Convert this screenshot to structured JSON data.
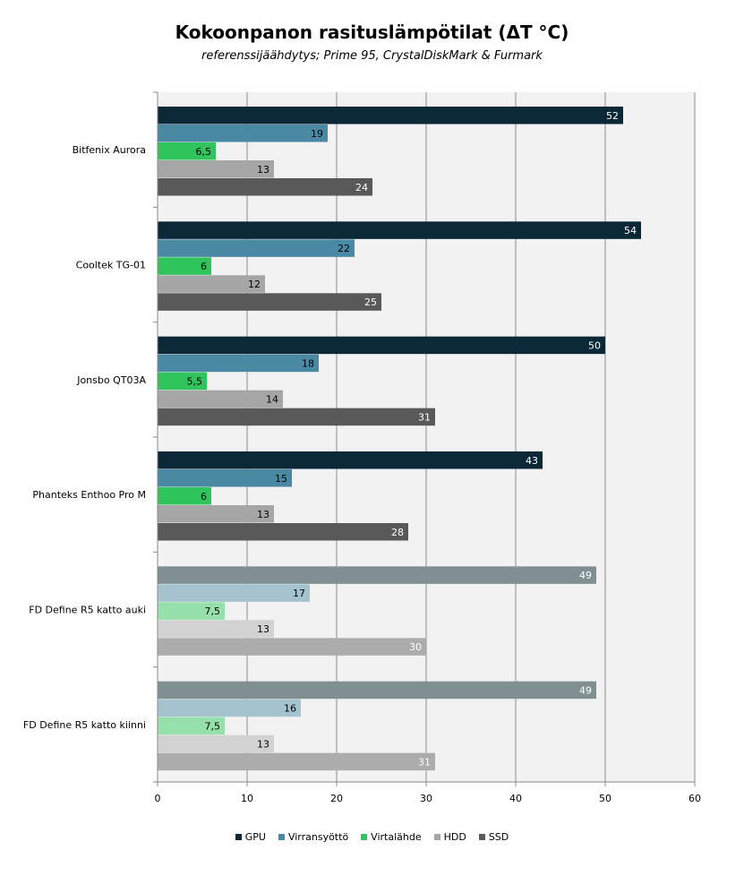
{
  "chart_data": {
    "type": "bar",
    "orientation": "horizontal",
    "title": "Kokoonpanon rasituslämpötilat (ΔT °C)",
    "subtitle": "referenssijäähdytys; Prime 95, CrystalDiskMark & Furmark",
    "categories": [
      "Bitfenix Aurora",
      "Cooltek TG-01",
      "Jonsbo QT03A",
      "Phanteks Enthoo Pro M",
      "FD Define R5 katto auki",
      "FD Define R5 katto kiinni"
    ],
    "series": [
      {
        "name": "GPU",
        "color": "#0a2836",
        "muted_color": "#7f8f92",
        "values": [
          52,
          54,
          50,
          43,
          49,
          49
        ]
      },
      {
        "name": "Virransyöttö",
        "color": "#4a89a3",
        "muted_color": "#a4c3cf",
        "values": [
          19,
          22,
          18,
          15,
          17,
          16
        ]
      },
      {
        "name": "Virtalähde",
        "color": "#2fc45c",
        "muted_color": "#96e0ab",
        "values": [
          6.5,
          6,
          5.5,
          6,
          7.5,
          7.5
        ]
      },
      {
        "name": "HDD",
        "color": "#a6a6a6",
        "muted_color": "#d2d2d2",
        "values": [
          13,
          12,
          14,
          13,
          13,
          13
        ]
      },
      {
        "name": "SSD",
        "color": "#595959",
        "muted_color": "#acacac",
        "values": [
          24,
          25,
          31,
          28,
          30,
          31
        ]
      }
    ],
    "value_labels": [
      [
        "52",
        "54",
        "50",
        "43",
        "49",
        "49"
      ],
      [
        "19",
        "22",
        "18",
        "15",
        "17",
        "16"
      ],
      [
        "6,5",
        "6",
        "5,5",
        "6",
        "7,5",
        "7,5"
      ],
      [
        "13",
        "12",
        "14",
        "13",
        "13",
        "13"
      ],
      [
        "24",
        "25",
        "31",
        "28",
        "30",
        "31"
      ]
    ],
    "muted_categories": [
      4,
      5
    ],
    "xlim": [
      0,
      60
    ],
    "xticks": [
      "0",
      "10",
      "20",
      "30",
      "40",
      "50",
      "60"
    ],
    "grid": true,
    "legend": "bottom"
  }
}
